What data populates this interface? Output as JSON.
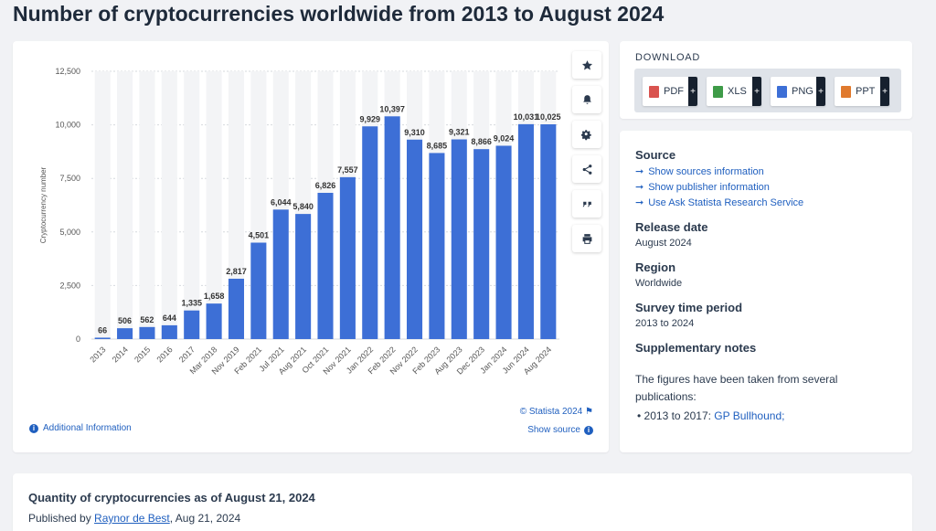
{
  "page": {
    "title": "Number of cryptocurrencies worldwide from 2013 to August 2024"
  },
  "chart_data": {
    "type": "bar",
    "title": "",
    "xlabel": "",
    "ylabel": "Cryptocurrency number",
    "ylim": [
      0,
      12500
    ],
    "yticks": [
      "0",
      "2,500",
      "5,000",
      "7,500",
      "10,000",
      "12,500"
    ],
    "grid": true,
    "categories": [
      "2013",
      "2014",
      "2015",
      "2016",
      "2017",
      "Mar 2018",
      "Nov 2019",
      "Feb 2021",
      "Jul 2021",
      "Aug 2021",
      "Oct 2021",
      "Nov 2021",
      "Jan 2022",
      "Feb 2022",
      "Nov 2022",
      "Feb 2023",
      "Aug 2023",
      "Dec 2023",
      "Jan 2024",
      "Jun 2024",
      "Aug 2024"
    ],
    "values": [
      66,
      506,
      562,
      644,
      1335,
      1658,
      2817,
      4501,
      6044,
      5840,
      6826,
      7557,
      9929,
      10397,
      9310,
      8685,
      9321,
      8866,
      9024,
      10031,
      10025
    ],
    "labels": [
      "66",
      "506",
      "562",
      "644",
      "1,335",
      "1,658",
      "2,817",
      "4,501",
      "6,044",
      "5,840",
      "6,826",
      "7,557",
      "9,929",
      "10,397",
      "9,310",
      "8,685",
      "9,321",
      "8,866",
      "9,024",
      "10,031",
      "10,025"
    ],
    "bar_color": "#3d6fd6"
  },
  "chart_footer": {
    "copyright": "© Statista 2024",
    "show_source": "Show source",
    "additional_info": "Additional Information"
  },
  "tools": [
    {
      "name": "favorite",
      "icon": "star-icon"
    },
    {
      "name": "notify",
      "icon": "bell-icon"
    },
    {
      "name": "settings",
      "icon": "gear-icon"
    },
    {
      "name": "share",
      "icon": "share-icon"
    },
    {
      "name": "cite",
      "icon": "quote-icon"
    },
    {
      "name": "print",
      "icon": "printer-icon"
    }
  ],
  "download": {
    "title": "DOWNLOAD",
    "buttons": [
      {
        "label": "PDF",
        "color": "#d9534f"
      },
      {
        "label": "XLS",
        "color": "#3e9b48"
      },
      {
        "label": "PNG",
        "color": "#3d6fd6"
      },
      {
        "label": "PPT",
        "color": "#e07a2e"
      }
    ],
    "plus": "+"
  },
  "info": {
    "source_heading": "Source",
    "source_links": [
      "Show sources information",
      "Show publisher information",
      "Use Ask Statista Research Service"
    ],
    "release_heading": "Release date",
    "release_value": "August 2024",
    "region_heading": "Region",
    "region_value": "Worldwide",
    "period_heading": "Survey time period",
    "period_value": "2013 to 2024",
    "notes_heading": "Supplementary notes",
    "notes_text": "The figures have been taken from several publications:",
    "notes_bullet_prefix": "2013 to 2017: ",
    "notes_bullet_link": "GP Bullhound;"
  },
  "bottom": {
    "title": "Quantity of cryptocurrencies as of August 21, 2024",
    "published_prefix": "Published by ",
    "author": "Raynor de Best",
    "date": ", Aug 21, 2024"
  }
}
